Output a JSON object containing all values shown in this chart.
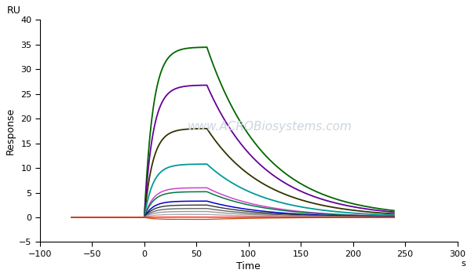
{
  "xlabel": "Time",
  "ylabel": "Response",
  "xlabel_suffix": "s",
  "ru_label": "RU",
  "xlim": [
    -100,
    300
  ],
  "ylim": [
    -5,
    40
  ],
  "xticks": [
    -100,
    -50,
    0,
    50,
    100,
    150,
    200,
    250,
    300
  ],
  "yticks": [
    -5,
    0,
    5,
    10,
    15,
    20,
    25,
    30,
    35,
    40
  ],
  "association_start": 0,
  "association_end": 60,
  "dissociation_end": 240,
  "curves": [
    {
      "peak": 34.5,
      "color": "#006600",
      "lw": 1.3,
      "ka": 0.12,
      "kd": 0.018
    },
    {
      "peak": 26.8,
      "color": "#660099",
      "lw": 1.3,
      "ka": 0.12,
      "kd": 0.018
    },
    {
      "peak": 18.0,
      "color": "#333300",
      "lw": 1.3,
      "ka": 0.12,
      "kd": 0.018
    },
    {
      "peak": 10.8,
      "color": "#009999",
      "lw": 1.3,
      "ka": 0.12,
      "kd": 0.018
    },
    {
      "peak": 6.0,
      "color": "#cc44cc",
      "lw": 1.1,
      "ka": 0.12,
      "kd": 0.018
    },
    {
      "peak": 5.2,
      "color": "#007744",
      "lw": 1.1,
      "ka": 0.12,
      "kd": 0.018
    },
    {
      "peak": 3.3,
      "color": "#0000cc",
      "lw": 1.1,
      "ka": 0.12,
      "kd": 0.018
    },
    {
      "peak": 2.5,
      "color": "#333333",
      "lw": 1.0,
      "ka": 0.12,
      "kd": 0.018
    },
    {
      "peak": 1.8,
      "color": "#666666",
      "lw": 1.0,
      "ka": 0.12,
      "kd": 0.018
    },
    {
      "peak": 1.2,
      "color": "#999999",
      "lw": 1.0,
      "ka": 0.12,
      "kd": 0.018
    },
    {
      "peak": 0.6,
      "color": "#aaaaaa",
      "lw": 1.0,
      "ka": 0.12,
      "kd": 0.018
    },
    {
      "peak": 0.05,
      "color": "#ff0000",
      "lw": 0.9,
      "ka": 0.12,
      "kd": 0.018
    },
    {
      "peak": -0.4,
      "color": "#cc4400",
      "lw": 0.9,
      "ka": 0.12,
      "kd": 0.018
    }
  ],
  "background_color": "#ffffff",
  "watermark_color": "#ccd5e0",
  "watermark_text": "www.ACROBiosystems.com"
}
